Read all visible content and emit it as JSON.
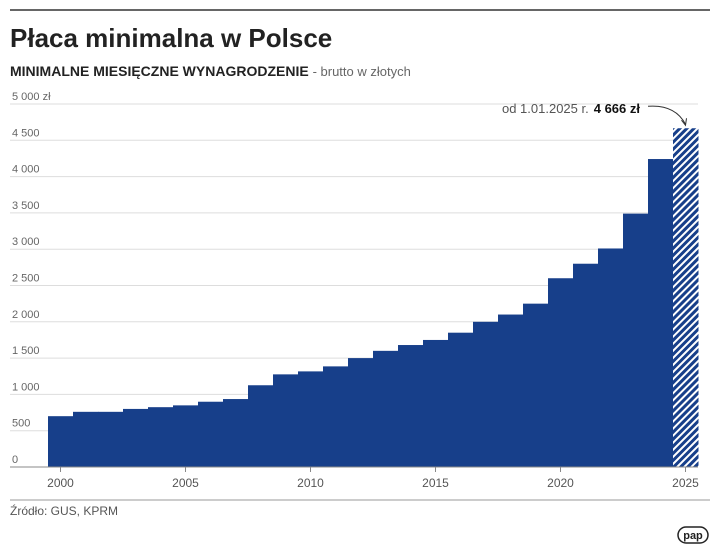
{
  "chart_data": {
    "type": "bar",
    "title": "Płaca minimalna w Polsce",
    "subtitle_bold": "MINIMALNE MIESIĘCZNE WYNAGRODZENIE",
    "subtitle": "- brutto w złotych",
    "categories": [
      "2000",
      null,
      null,
      null,
      null,
      "2005",
      null,
      null,
      null,
      null,
      "2010",
      null,
      null,
      null,
      null,
      "2015",
      null,
      null,
      null,
      null,
      "2020",
      null,
      null,
      null,
      null,
      "2025"
    ],
    "values": [
      700,
      760,
      760,
      800,
      824,
      849,
      899,
      936,
      1126,
      1276,
      1317,
      1386,
      1500,
      1600,
      1680,
      1750,
      1850,
      2000,
      2100,
      2250,
      2600,
      2800,
      3010,
      3490,
      4242,
      4666
    ],
    "color": "#173f8a",
    "hatch_last": true,
    "ylim": [
      0,
      5000
    ],
    "yticks": [
      0,
      500,
      {
        "value": 1000,
        "label": "1 000"
      },
      {
        "value": 1500,
        "label": "1 500"
      },
      {
        "value": 2000,
        "label": "2 000"
      },
      {
        "value": 2500,
        "label": "2 500"
      },
      {
        "value": 3000,
        "label": "3 000"
      },
      {
        "value": 3500,
        "label": "3 500"
      },
      {
        "value": 4000,
        "label": "4 000"
      },
      {
        "value": 4500,
        "label": "4 500"
      },
      {
        "value": 5000,
        "label": "5 000 zł"
      }
    ],
    "grid": true,
    "annotation": "od 1.01.2025 r.",
    "annotation_value": "4 666 zł",
    "source": "Źródło: GUS, KPRM",
    "logo": "pap"
  }
}
